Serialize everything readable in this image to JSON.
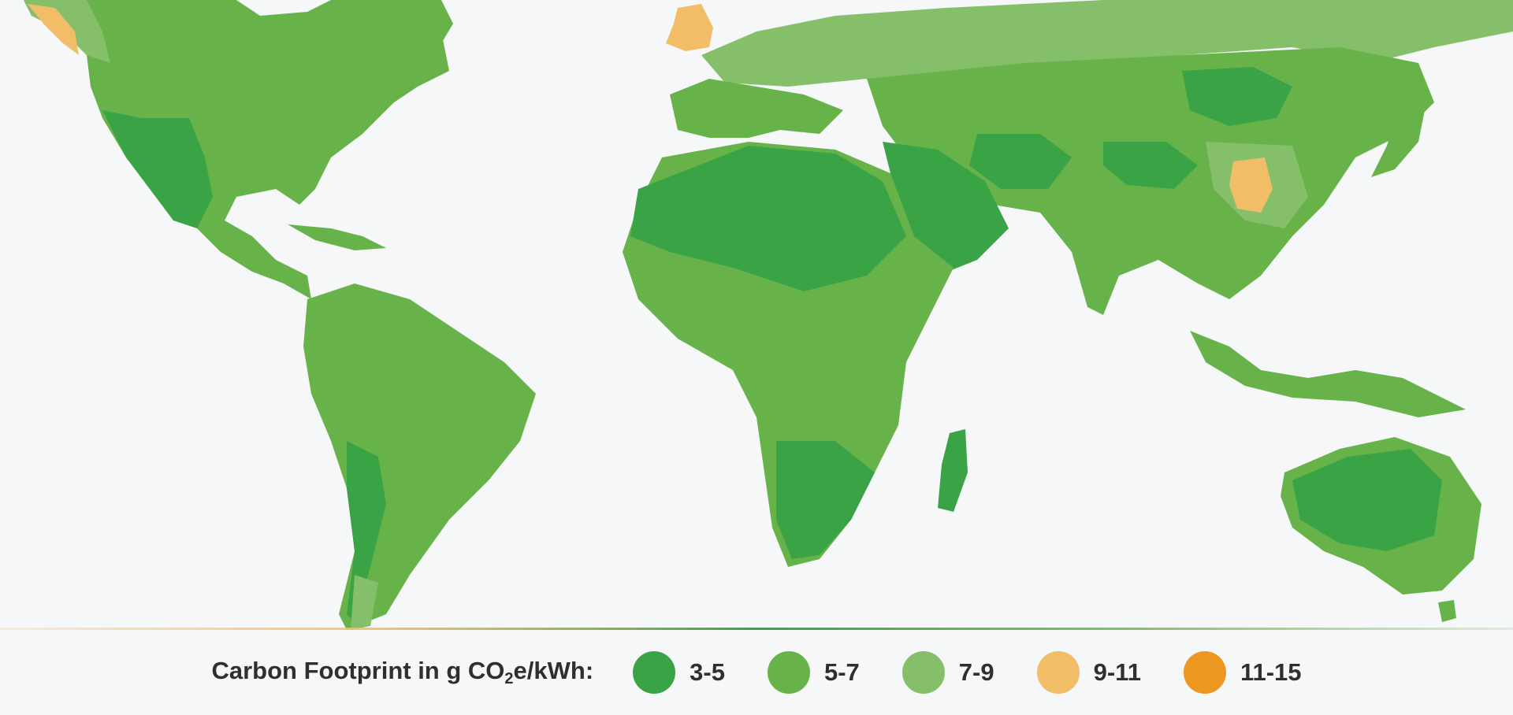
{
  "legend": {
    "title_prefix": "Carbon Footprint in g CO",
    "title_subscript": "2",
    "title_suffix": "e/kWh:",
    "items": [
      {
        "label": "3-5",
        "color": "#3aa346"
      },
      {
        "label": "5-7",
        "color": "#67b34a"
      },
      {
        "label": "7-9",
        "color": "#86bf6a"
      },
      {
        "label": "9-11",
        "color": "#f2bd67"
      },
      {
        "label": "11-15",
        "color": "#ec971f"
      }
    ]
  },
  "colors": {
    "background": "#f6f7f9",
    "land_low": "#3aa346",
    "land_mid": "#67b34a",
    "land_high": "#86bf6a",
    "hot": "#f2bd67",
    "hottest": "#ec971f"
  }
}
